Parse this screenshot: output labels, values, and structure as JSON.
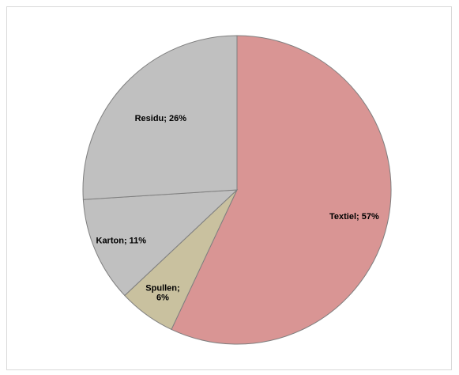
{
  "chart_data": {
    "type": "pie",
    "start_angle_deg": 0,
    "direction": "clockwise",
    "slices": [
      {
        "name": "Textiel",
        "value": 57,
        "color": "#d99594",
        "label_lines": [
          "Textiel; 57%"
        ]
      },
      {
        "name": "Spullen",
        "value": 6,
        "color": "#c9c19f",
        "label_lines": [
          "Spullen;",
          "6%"
        ]
      },
      {
        "name": "Karton",
        "value": 11,
        "color": "#c0c0c0",
        "label_lines": [
          "Karton; 11%"
        ]
      },
      {
        "name": "Residu",
        "value": 26,
        "color": "#c0c0c0",
        "label_lines": [
          "Residu; 26%"
        ]
      }
    ]
  }
}
